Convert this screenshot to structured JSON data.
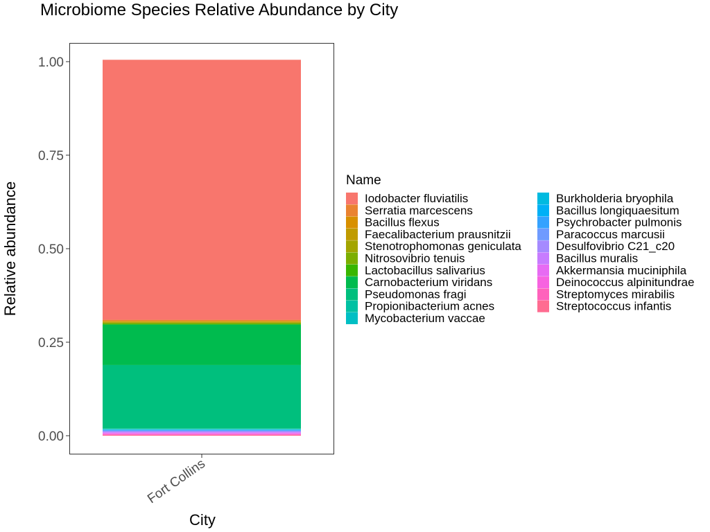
{
  "chart_data": {
    "type": "bar",
    "stacked": true,
    "title": "Microbiome Species Relative Abundance by City",
    "xlabel": "City",
    "ylabel": "Relative abundance",
    "categories": [
      "Fort Collins"
    ],
    "ylim": [
      0,
      1
    ],
    "yticks": [
      "0.00",
      "0.25",
      "0.50",
      "0.75",
      "1.00"
    ],
    "ytick_values": [
      0,
      0.25,
      0.5,
      0.75,
      1
    ],
    "grid": false,
    "legend": {
      "title": "Name",
      "placement": "right"
    },
    "series": [
      {
        "name": "Iodobacter fluviatilis",
        "color": "#F8766D",
        "values": [
          0.695
        ]
      },
      {
        "name": "Serratia marcescens",
        "color": "#EA8331",
        "values": [
          0.003
        ]
      },
      {
        "name": "Bacillus flexus",
        "color": "#D89000",
        "values": [
          0.002
        ]
      },
      {
        "name": "Faecalibacterium prausnitzii",
        "color": "#C09B00",
        "values": [
          0.002
        ]
      },
      {
        "name": "Stenotrophomonas geniculata",
        "color": "#A3A500",
        "values": [
          0.002
        ]
      },
      {
        "name": "Nitrosovibrio tenuis",
        "color": "#7CAE00",
        "values": [
          0.002
        ]
      },
      {
        "name": "Lactobacillus salivarius",
        "color": "#39B600",
        "values": [
          0.002
        ]
      },
      {
        "name": "Carnobacterium viridans",
        "color": "#00BB4E",
        "values": [
          0.108
        ]
      },
      {
        "name": "Pseudomonas fragi",
        "color": "#00BF7D",
        "values": [
          0.17
        ]
      },
      {
        "name": "Propionibacterium acnes",
        "color": "#00C1A3",
        "values": [
          0.001
        ]
      },
      {
        "name": "Mycobacterium vaccae",
        "color": "#00BFC4",
        "values": [
          0.001
        ]
      },
      {
        "name": "Burkholderia bryophila",
        "color": "#00BAE0",
        "values": [
          0.001
        ]
      },
      {
        "name": "Bacillus longiquaesitum",
        "color": "#00B0F6",
        "values": [
          0.001
        ]
      },
      {
        "name": "Psychrobacter pulmonis",
        "color": "#35A2FF",
        "values": [
          0.001
        ]
      },
      {
        "name": "Paracoccus marcusii",
        "color": "#6F9BFF",
        "values": [
          0.002
        ]
      },
      {
        "name": "Desulfovibrio C21_c20",
        "color": "#A58AFF",
        "values": [
          0.002
        ]
      },
      {
        "name": "Bacillus muralis",
        "color": "#C77CFF",
        "values": [
          0.002
        ]
      },
      {
        "name": "Akkermansia muciniphila",
        "color": "#E76BF3",
        "values": [
          0.002
        ]
      },
      {
        "name": "Deinococcus alpinitundrae",
        "color": "#F763E0",
        "values": [
          0.002
        ]
      },
      {
        "name": "Streptomyces mirabilis",
        "color": "#FF62BC",
        "values": [
          0.002
        ]
      },
      {
        "name": "Streptococcus infantis",
        "color": "#FF6C91",
        "values": [
          0.002
        ]
      }
    ]
  }
}
